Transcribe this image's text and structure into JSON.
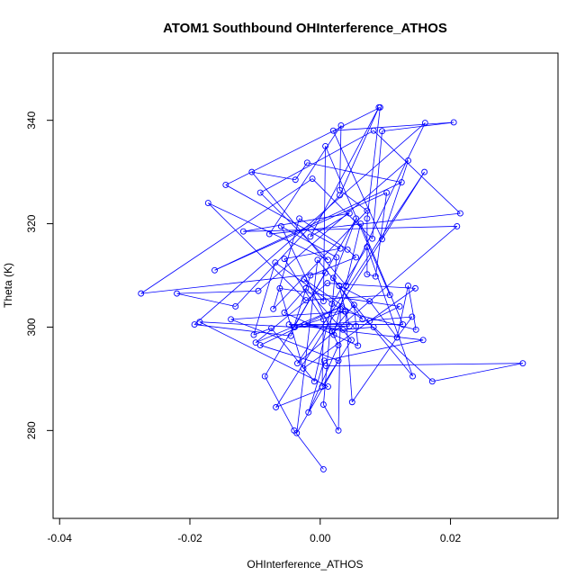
{
  "chart_data": {
    "type": "line",
    "markers": "open-circle",
    "title": "ATOM1 Southbound OHInterference_ATHOS",
    "xlabel": "OHInterference_ATHOS",
    "ylabel": "Theta (K)",
    "xlim": [
      -0.041,
      0.0365
    ],
    "ylim": [
      263,
      353
    ],
    "xticks": [
      -0.04,
      -0.02,
      0.0,
      0.02
    ],
    "xtick_labels": [
      "-0.04",
      "-0.02",
      "0.00",
      "0.02"
    ],
    "yticks": [
      280,
      300,
      320,
      340
    ],
    "ytick_labels": [
      "280",
      "300",
      "320",
      "340"
    ],
    "grid": false,
    "legend": "none",
    "series_color": "#0000ff",
    "series": [
      {
        "x": [
          0.0005,
          -0.004,
          -0.0085,
          0.0008,
          -0.0275,
          -0.0012,
          0.008,
          0.0095,
          0.0205,
          0.002,
          0.0095,
          0.0135,
          -0.0095,
          -0.022,
          -0.013,
          0.003,
          0.009,
          -0.0015,
          0.0045,
          -0.0118,
          0.021,
          -0.0035,
          0.016,
          -0.0068,
          0.0012,
          -0.0185,
          -0.004,
          0.0055,
          0.002,
          0.0065,
          -0.0025,
          0.0005,
          0.0008,
          0.0107,
          -0.0022,
          -0.0172,
          0.0012,
          -0.0092,
          0.0082,
          0.0215,
          -0.0078,
          0.0032,
          0.003,
          0.0072,
          -0.0072,
          -0.0032,
          0.0042,
          0.0055,
          -0.0015,
          -0.0045,
          -0.0193,
          0.0161,
          0.004,
          -0.0105,
          -0.0038,
          -0.002,
          0.0125,
          -0.0162,
          0.0102,
          0.0085,
          0.0072,
          0.0072,
          0.0092,
          -0.0145,
          0.0031,
          -0.0055,
          0.0005,
          0.0003,
          0.0048,
          -0.0022,
          -0.0055,
          0.0058,
          0.0055,
          0.0052,
          0.0018,
          0.0021,
          0.0062,
          0.0127,
          -0.0048,
          0.0158,
          0.0006,
          -0.0018,
          0.0028,
          -0.006,
          0.0025,
          0.0005,
          0.0028,
          0.0031,
          -0.0069,
          -0.0102,
          -0.0075,
          -0.0009,
          0.0018,
          0.0072,
          0.0142,
          -0.0004,
          -0.0036,
          0.0028,
          -0.0137,
          0.0039,
          0.0049,
          0.0118,
          0.0076,
          0.0029,
          0.0045,
          -0.0039,
          0.0141,
          0.0118,
          0.0135,
          0.0147,
          0.0038,
          -0.0024,
          0.0035,
          0.0082,
          0.0172,
          0.0311,
          0.0009,
          -0.0092,
          0.0033,
          -0.0099,
          0.0011,
          0.0146,
          -0.0026,
          -0.0062,
          0.0122,
          0.0076
        ],
        "y": [
          272.5,
          280.0,
          290.5,
          310.5,
          306.5,
          328.7,
          317.1,
          337.9,
          339.6,
          338.0,
          317.0,
          332.2,
          307.0,
          306.5,
          304.0,
          325.5,
          342.5,
          317.5,
          322.0,
          318.5,
          319.5,
          293.0,
          330.0,
          284.5,
          288.5,
          301.0,
          300.0,
          321.0,
          309.5,
          301.5,
          309.3,
          305.0,
          335.0,
          306.2,
          305.2,
          324.0,
          313.0,
          326.0,
          338.0,
          322.0,
          318.0,
          339.0,
          326.5,
          322.5,
          303.5,
          321.0,
          315.0,
          313.5,
          310.0,
          298.3,
          300.5,
          339.5,
          308.0,
          330.0,
          328.5,
          331.8,
          328.0,
          311.0,
          326.0,
          309.8,
          310.2,
          321.0,
          342.5,
          327.5,
          315.2,
          313.2,
          301.5,
          288.5,
          297.5,
          307.5,
          302.8,
          296.4,
          300.2,
          304.3,
          299.2,
          298.5,
          320.0,
          300.5,
          300.5,
          297.5,
          293.5,
          283.5,
          296.5,
          319.5,
          313.5,
          285.0,
          280.0,
          303.5,
          312.5,
          298.5,
          299.8,
          289.5,
          304.5,
          315.5,
          290.5,
          313.0,
          279.5,
          293.5,
          301.5,
          303.0,
          285.5,
          298.0,
          305.0,
          308.0,
          300.2,
          300.0,
          302.0,
          298.0,
          308.0,
          299.5,
          303.0,
          300.5,
          299.5,
          300.0,
          289.5,
          293.0,
          292.5,
          296.5,
          304.0,
          297.0,
          308.5,
          307.5,
          292.0,
          307.5,
          304.0,
          301.2
        ]
      }
    ]
  }
}
